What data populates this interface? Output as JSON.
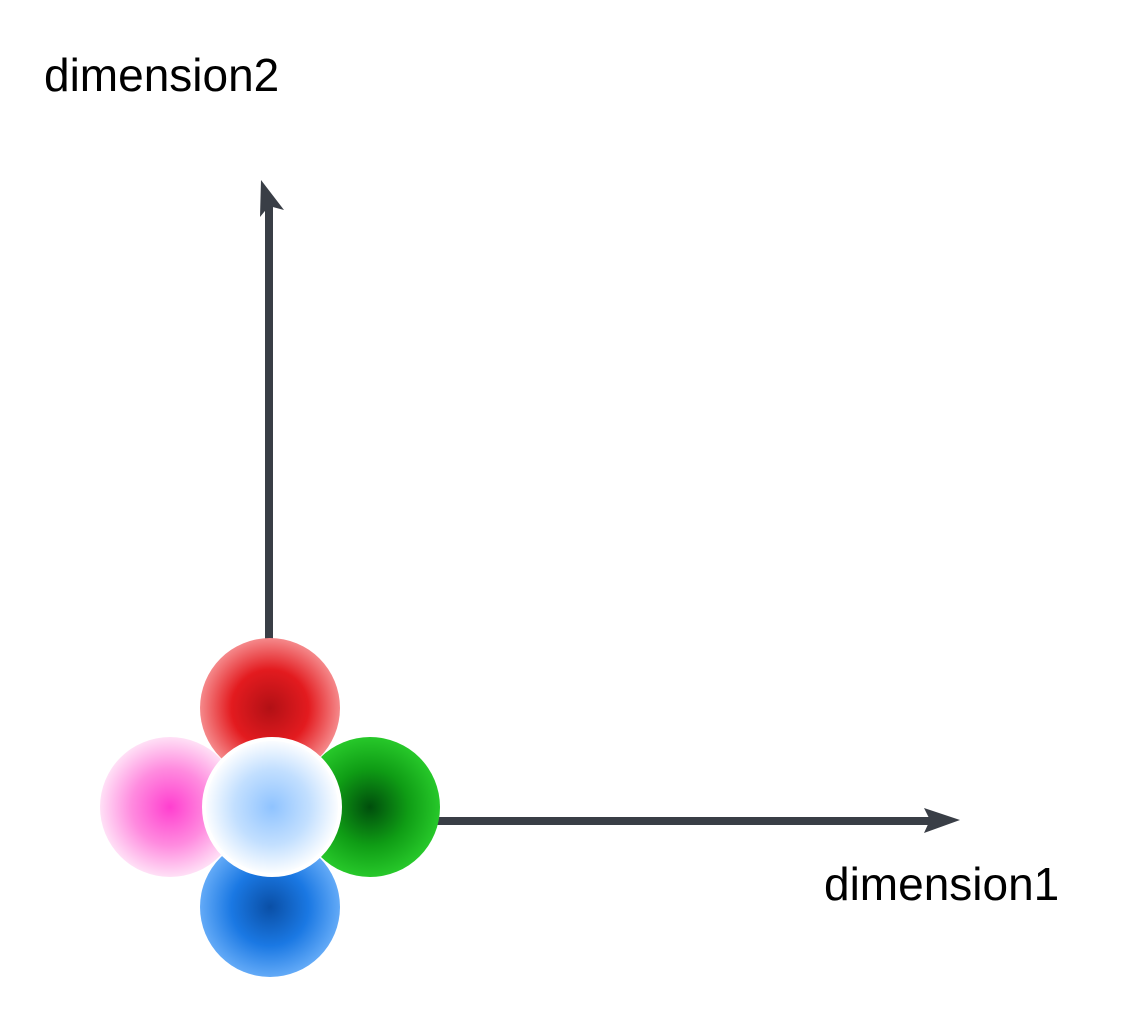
{
  "diagram": {
    "x_axis_label": "dimension1",
    "y_axis_label": "dimension2",
    "axis_color": "#393e46",
    "spheres": [
      {
        "name": "red-sphere",
        "color_center": "#b21015",
        "color_mid": "#e31b1f",
        "color_edge": "#f5898b"
      },
      {
        "name": "pink-sphere",
        "color_center": "#ff3fcf",
        "color_mid": "#ff8bdf",
        "color_edge": "#ffe0f6"
      },
      {
        "name": "green-sphere",
        "color_center": "#004e0c",
        "color_mid": "#0f9d15",
        "color_edge": "#27c82a"
      },
      {
        "name": "blue-sphere",
        "color_center": "#0a4fa6",
        "color_mid": "#1a78e3",
        "color_edge": "#63aaf7"
      },
      {
        "name": "light-blue-sphere",
        "color_center": "#8fc3ff",
        "color_mid": "#c2dfff",
        "color_edge": "#ffffff"
      }
    ]
  }
}
